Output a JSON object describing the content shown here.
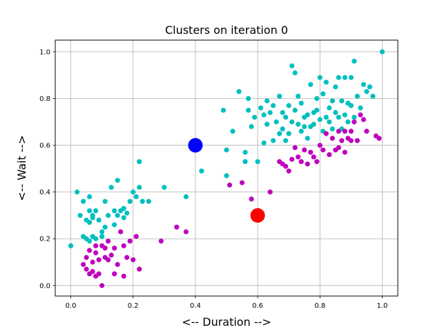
{
  "chart_data": {
    "type": "scatter",
    "title": "Clusters on iteration 0",
    "xlabel": "<-- Duration -->",
    "ylabel": "<-- Wait -->",
    "xlim": [
      -0.05,
      1.05
    ],
    "ylim": [
      -0.045,
      1.05
    ],
    "xticks": [
      "0.0",
      "0.2",
      "0.4",
      "0.6",
      "0.8",
      "1.0"
    ],
    "yticks": [
      "0.0",
      "0.2",
      "0.4",
      "0.6",
      "0.8",
      "1.0"
    ],
    "grid": true,
    "colors": {
      "cluster_a": "#00bfbf",
      "cluster_b": "#bf00bf",
      "centroid_a": "#0000ff",
      "centroid_b": "#ff0000"
    },
    "series": [
      {
        "color": "#00bfbf",
        "x": [
          0.0,
          0.02,
          0.03,
          0.04,
          0.04,
          0.05,
          0.05,
          0.06,
          0.06,
          0.06,
          0.06,
          0.07,
          0.07,
          0.07,
          0.08,
          0.08,
          0.09,
          0.1,
          0.1,
          0.11,
          0.11,
          0.12,
          0.13,
          0.14,
          0.14,
          0.15,
          0.15,
          0.16,
          0.17,
          0.17,
          0.18,
          0.19,
          0.2,
          0.21,
          0.22,
          0.22,
          0.23,
          0.25,
          0.3,
          0.37,
          0.42,
          0.49,
          0.5,
          0.5,
          0.52,
          0.54,
          0.56,
          0.56,
          0.57,
          0.57,
          0.58,
          0.59,
          0.6,
          0.61,
          0.62,
          0.62,
          0.63,
          0.63,
          0.64,
          0.65,
          0.65,
          0.66,
          0.67,
          0.67,
          0.68,
          0.68,
          0.69,
          0.69,
          0.7,
          0.7,
          0.71,
          0.71,
          0.72,
          0.72,
          0.73,
          0.73,
          0.74,
          0.74,
          0.75,
          0.75,
          0.76,
          0.76,
          0.77,
          0.77,
          0.78,
          0.78,
          0.79,
          0.79,
          0.8,
          0.8,
          0.81,
          0.81,
          0.82,
          0.82,
          0.83,
          0.83,
          0.84,
          0.84,
          0.85,
          0.85,
          0.86,
          0.86,
          0.87,
          0.87,
          0.88,
          0.88,
          0.89,
          0.89,
          0.9,
          0.9,
          0.91,
          0.91,
          0.92,
          0.93,
          0.94,
          0.95,
          0.96,
          0.97,
          1.0
        ],
        "y": [
          0.17,
          0.4,
          0.3,
          0.21,
          0.36,
          0.2,
          0.28,
          0.32,
          0.27,
          0.19,
          0.38,
          0.3,
          0.21,
          0.29,
          0.2,
          0.32,
          0.28,
          0.23,
          0.21,
          0.36,
          0.25,
          0.3,
          0.42,
          0.26,
          0.32,
          0.45,
          0.3,
          0.32,
          0.29,
          0.33,
          0.31,
          0.36,
          0.4,
          0.38,
          0.53,
          0.42,
          0.36,
          0.36,
          0.42,
          0.38,
          0.49,
          0.75,
          0.58,
          0.47,
          0.66,
          0.83,
          0.57,
          0.53,
          0.8,
          0.75,
          0.68,
          0.72,
          0.53,
          0.76,
          0.61,
          0.73,
          0.79,
          0.69,
          0.74,
          0.62,
          0.77,
          0.7,
          0.81,
          0.65,
          0.67,
          0.74,
          0.72,
          0.62,
          0.77,
          0.65,
          0.94,
          0.7,
          0.91,
          0.75,
          0.69,
          0.81,
          0.66,
          0.78,
          0.68,
          0.72,
          0.73,
          0.63,
          0.86,
          0.68,
          0.74,
          0.69,
          0.8,
          0.75,
          0.89,
          0.71,
          0.66,
          0.82,
          0.72,
          0.87,
          0.76,
          0.7,
          0.79,
          0.67,
          0.85,
          0.74,
          0.89,
          0.72,
          0.79,
          0.67,
          0.89,
          0.73,
          0.78,
          0.7,
          0.89,
          0.77,
          0.96,
          0.72,
          0.81,
          0.76,
          0.86,
          0.83,
          0.85,
          0.81,
          1.0
        ]
      },
      {
        "color": "#bf00bf",
        "x": [
          0.04,
          0.05,
          0.05,
          0.06,
          0.06,
          0.07,
          0.07,
          0.08,
          0.08,
          0.08,
          0.09,
          0.09,
          0.1,
          0.1,
          0.11,
          0.11,
          0.12,
          0.12,
          0.13,
          0.14,
          0.14,
          0.15,
          0.16,
          0.17,
          0.17,
          0.18,
          0.19,
          0.2,
          0.21,
          0.22,
          0.29,
          0.34,
          0.37,
          0.51,
          0.55,
          0.58,
          0.64,
          0.67,
          0.68,
          0.69,
          0.7,
          0.71,
          0.72,
          0.73,
          0.74,
          0.75,
          0.76,
          0.77,
          0.78,
          0.79,
          0.8,
          0.81,
          0.82,
          0.83,
          0.84,
          0.85,
          0.86,
          0.86,
          0.87,
          0.88,
          0.88,
          0.89,
          0.9,
          0.9,
          0.91,
          0.92,
          0.93,
          0.94,
          0.95,
          0.98,
          0.99
        ],
        "y": [
          0.09,
          0.07,
          0.12,
          0.05,
          0.15,
          0.06,
          0.1,
          0.14,
          0.04,
          0.17,
          0.11,
          0.05,
          0.17,
          0.0,
          0.12,
          0.16,
          0.19,
          0.11,
          0.13,
          0.16,
          0.05,
          0.09,
          0.23,
          0.04,
          0.17,
          0.12,
          0.19,
          0.11,
          0.21,
          0.07,
          0.19,
          0.25,
          0.23,
          0.43,
          0.44,
          0.37,
          0.4,
          0.53,
          0.52,
          0.51,
          0.49,
          0.54,
          0.59,
          0.55,
          0.53,
          0.58,
          0.52,
          0.57,
          0.55,
          0.53,
          0.6,
          0.58,
          0.65,
          0.56,
          0.63,
          0.58,
          0.66,
          0.59,
          0.62,
          0.57,
          0.66,
          0.63,
          0.62,
          0.66,
          0.7,
          0.62,
          0.73,
          0.71,
          0.66,
          0.64,
          0.63
        ]
      }
    ],
    "centroids": [
      {
        "x": 0.4,
        "y": 0.6,
        "color": "#0000ff"
      },
      {
        "x": 0.6,
        "y": 0.3,
        "color": "#ff0000"
      }
    ]
  }
}
